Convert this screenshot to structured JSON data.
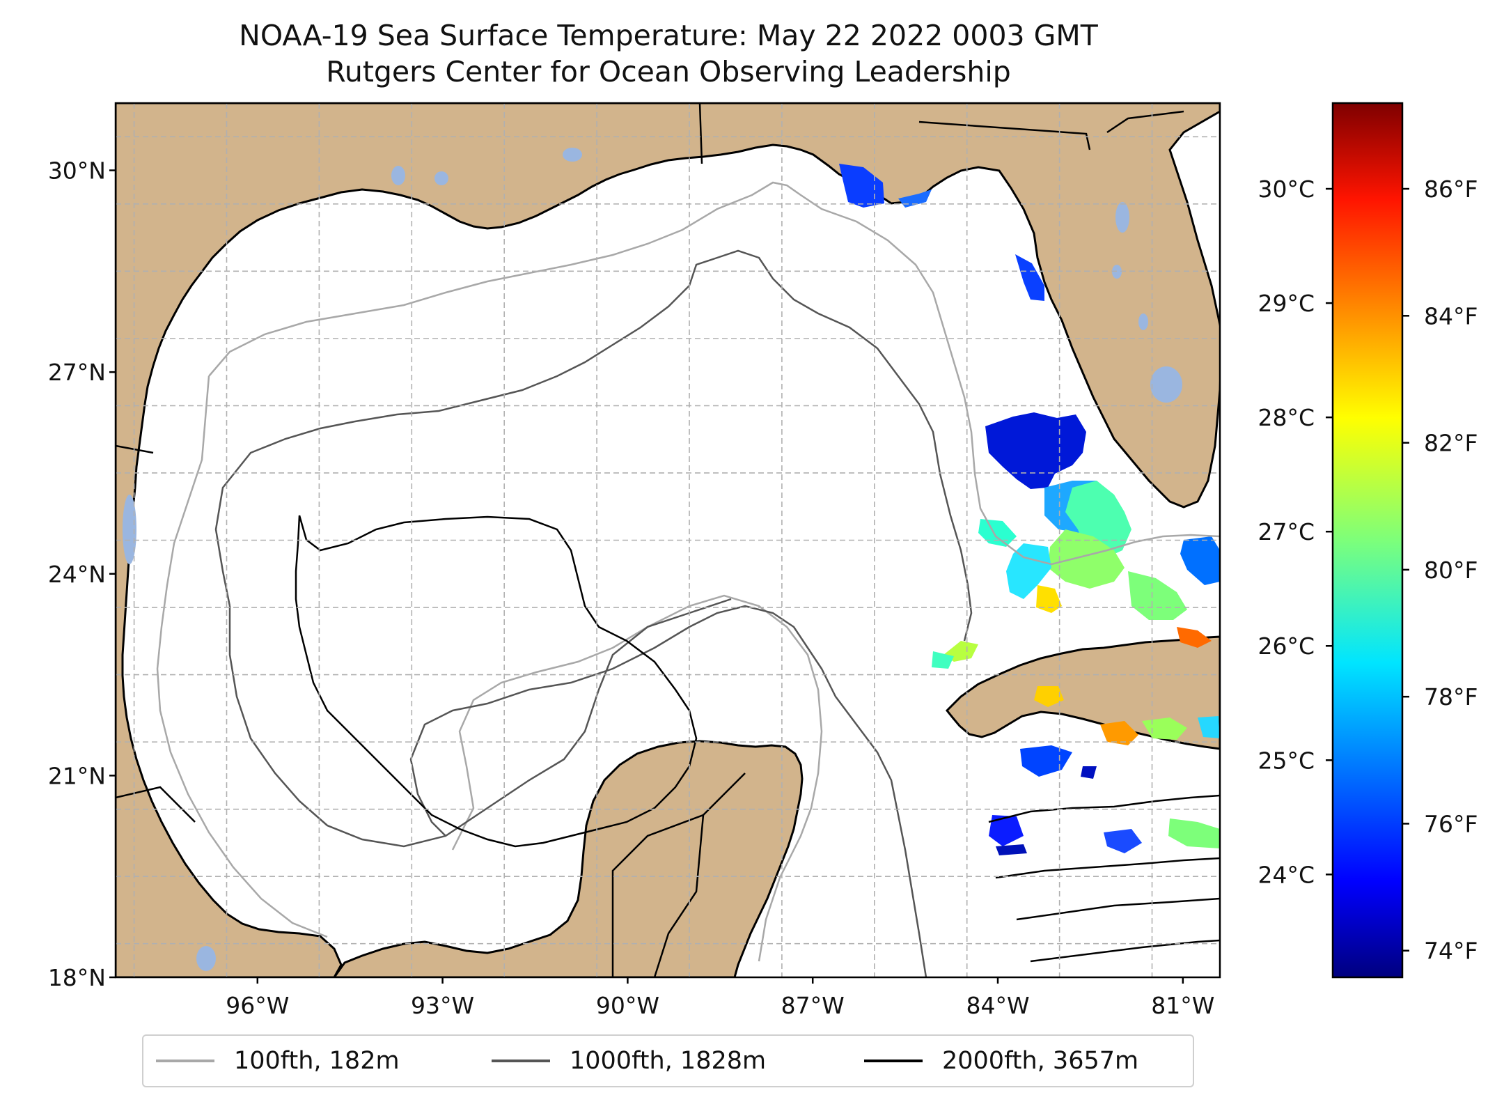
{
  "title": {
    "line1": "NOAA-19 Sea Surface Temperature: May 22 2022 0003 GMT",
    "line2": "Rutgers Center for Ocean Observing Leadership"
  },
  "map": {
    "lat_ticks": [
      {
        "value": 30,
        "label": "30°N"
      },
      {
        "value": 27,
        "label": "27°N"
      },
      {
        "value": 24,
        "label": "24°N"
      },
      {
        "value": 21,
        "label": "21°N"
      },
      {
        "value": 18,
        "label": "18°N"
      }
    ],
    "lon_ticks": [
      {
        "value": -96,
        "label": "96°W"
      },
      {
        "value": -93,
        "label": "93°W"
      },
      {
        "value": -90,
        "label": "90°W"
      },
      {
        "value": -87,
        "label": "87°W"
      },
      {
        "value": -84,
        "label": "84°W"
      },
      {
        "value": -81,
        "label": "81°W"
      }
    ],
    "extent": {
      "lon": [
        -98.3,
        -80.4
      ],
      "lat": [
        18.0,
        31.0
      ]
    },
    "land_color": "#d2b48c",
    "lake_color": "#9ab6e0",
    "grid": "dashed"
  },
  "colorbar": {
    "colormap": "jet",
    "celsius_ticks": [
      {
        "value": 30,
        "label": "30°C"
      },
      {
        "value": 29,
        "label": "29°C"
      },
      {
        "value": 28,
        "label": "28°C"
      },
      {
        "value": 27,
        "label": "27°C"
      },
      {
        "value": 26,
        "label": "26°C"
      },
      {
        "value": 25,
        "label": "25°C"
      },
      {
        "value": 24,
        "label": "24°C"
      }
    ],
    "fahrenheit_ticks": [
      {
        "value": 86,
        "label": "86°F"
      },
      {
        "value": 84,
        "label": "84°F"
      },
      {
        "value": 82,
        "label": "82°F"
      },
      {
        "value": 80,
        "label": "80°F"
      },
      {
        "value": 78,
        "label": "78°F"
      },
      {
        "value": 76,
        "label": "76°F"
      },
      {
        "value": 74,
        "label": "74°F"
      }
    ]
  },
  "legend": [
    {
      "label": "100fth, 182m",
      "color": "#a8a8a8"
    },
    {
      "label": "1000fth, 1828m",
      "color": "#555555"
    },
    {
      "label": "2000fth, 3657m",
      "color": "#000000"
    }
  ]
}
